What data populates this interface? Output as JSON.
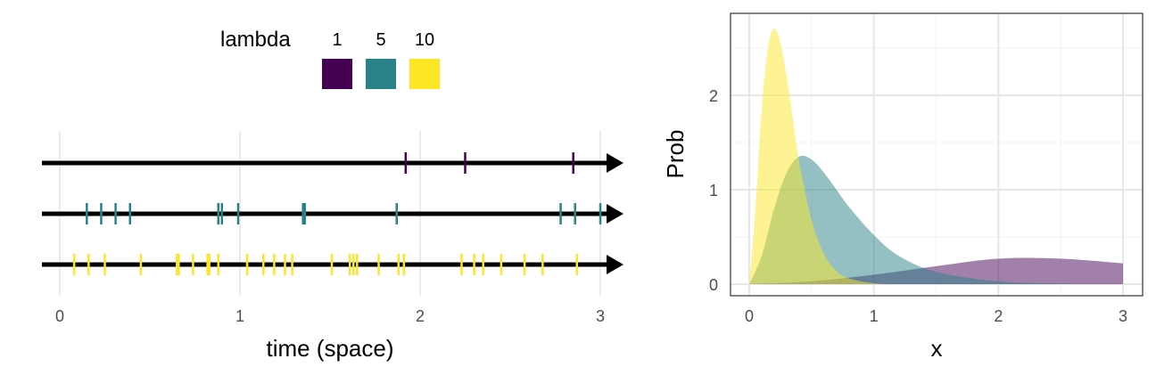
{
  "chart_data": [
    {
      "type": "scatter",
      "xlabel": "time (space)",
      "ylabel": "",
      "xlim": [
        0,
        3
      ],
      "x_ticks": [
        "0",
        "1",
        "2",
        "3"
      ],
      "grid": true,
      "legend": {
        "title": "lambda",
        "placement": "top",
        "entries": [
          {
            "label": "1",
            "color": "#440154"
          },
          {
            "label": "5",
            "color": "#2A8289"
          },
          {
            "label": "10",
            "color": "#FDE725"
          }
        ]
      },
      "series": [
        {
          "name": "1",
          "color": "#440154",
          "x": [
            1.92,
            2.25,
            2.85
          ]
        },
        {
          "name": "5",
          "color": "#2A8289",
          "x": [
            0.15,
            0.23,
            0.31,
            0.39,
            0.88,
            0.9,
            0.99,
            1.35,
            1.36,
            1.87,
            2.78,
            2.86,
            3.0
          ]
        },
        {
          "name": "10",
          "color": "#FDE725",
          "x": [
            0.08,
            0.16,
            0.25,
            0.45,
            0.65,
            0.66,
            0.74,
            0.82,
            0.83,
            0.88,
            1.04,
            1.13,
            1.19,
            1.25,
            1.29,
            1.51,
            1.61,
            1.63,
            1.65,
            1.77,
            1.88,
            1.91,
            2.23,
            2.3,
            2.35,
            2.45,
            2.58,
            2.68,
            2.87
          ]
        }
      ]
    },
    {
      "type": "area",
      "xlabel": "x",
      "ylabel": "Prob",
      "xlim": [
        0,
        3
      ],
      "ylim": [
        0,
        2.72
      ],
      "x_ticks": [
        "0",
        "1",
        "2",
        "3"
      ],
      "y_ticks": [
        "0",
        "1",
        "2"
      ],
      "grid": true,
      "series": [
        {
          "name": "1",
          "color": "#440154",
          "opacity": 0.5,
          "x": [
            0,
            0.5,
            1,
            1.5,
            2,
            2.5,
            3
          ],
          "values": [
            0,
            0.03,
            0.1,
            0.19,
            0.27,
            0.27,
            0.22
          ]
        },
        {
          "name": "5",
          "color": "#2A8289",
          "opacity": 0.5,
          "x": [
            0,
            0.1,
            0.2,
            0.3,
            0.4,
            0.5,
            0.6,
            0.7,
            0.8,
            1.0,
            1.2,
            1.5,
            2.0,
            2.5,
            3.0
          ],
          "values": [
            0,
            0.3,
            0.8,
            1.18,
            1.35,
            1.32,
            1.18,
            1.0,
            0.82,
            0.52,
            0.3,
            0.13,
            0.03,
            0.005,
            0
          ]
        },
        {
          "name": "10",
          "color": "#FDE725",
          "opacity": 0.5,
          "x": [
            0,
            0.05,
            0.1,
            0.15,
            0.2,
            0.25,
            0.3,
            0.35,
            0.4,
            0.5,
            0.6,
            0.7,
            0.8,
            1.0,
            1.2,
            1.5,
            3.0
          ],
          "values": [
            0,
            0.8,
            1.85,
            2.5,
            2.71,
            2.55,
            2.2,
            1.75,
            1.3,
            0.68,
            0.32,
            0.14,
            0.06,
            0.01,
            0,
            0,
            0
          ]
        }
      ]
    }
  ]
}
